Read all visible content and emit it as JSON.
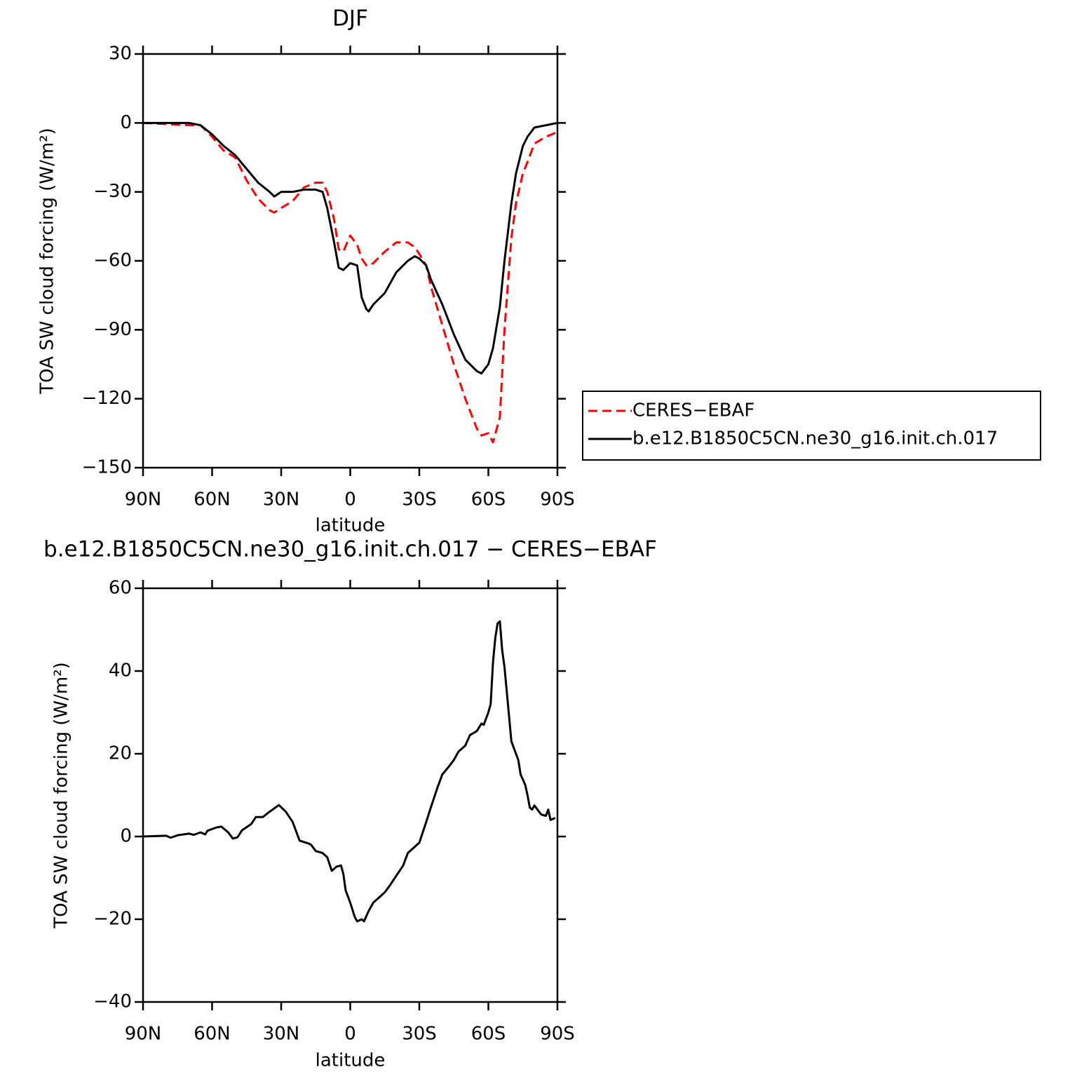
{
  "chart_data": [
    {
      "type": "line",
      "title": "DJF",
      "xlabel": "latitude",
      "ylabel": "TOA SW cloud forcing (W/m²)",
      "xlim": [
        90,
        -90
      ],
      "xticks": [
        {
          "value": 90,
          "label": "90N"
        },
        {
          "value": 60,
          "label": "60N"
        },
        {
          "value": 30,
          "label": "30N"
        },
        0,
        {
          "value": -30,
          "label": "30S"
        },
        {
          "value": -60,
          "label": "60S"
        },
        {
          "value": -90,
          "label": "90S"
        }
      ],
      "ylim": [
        -150,
        30
      ],
      "yticks": [
        30,
        0,
        {
          "value": -30,
          "label": "−30"
        },
        {
          "value": -60,
          "label": "−60"
        },
        {
          "value": -90,
          "label": "−90"
        },
        {
          "value": -120,
          "label": "−120"
        },
        {
          "value": -150,
          "label": "−150"
        }
      ],
      "legend": "right",
      "x": [
        90,
        70,
        65,
        60,
        55,
        50,
        45,
        40,
        35,
        33,
        30,
        25,
        20,
        15,
        12,
        10,
        7,
        5,
        3,
        0,
        -3,
        -5,
        -7,
        -8,
        -10,
        -15,
        -20,
        -25,
        -28,
        -30,
        -33,
        -35,
        -40,
        -45,
        -50,
        -55,
        -57,
        -60,
        -62,
        -65,
        -67,
        -70,
        -72,
        -75,
        -77,
        -80,
        -85,
        -90
      ],
      "series": [
        {
          "name": "CERES−EBAF",
          "color": "#ff0000",
          "dashed": true,
          "values": [
            0,
            -1,
            -1,
            -6,
            -12,
            -15,
            -25,
            -33,
            -38,
            -39,
            -37,
            -34,
            -28,
            -26,
            -26,
            -30,
            -42,
            -55,
            -56,
            -49,
            -53,
            -59,
            -62,
            -62,
            -61,
            -56,
            -52,
            -52,
            -54,
            -57,
            -62,
            -71,
            -88,
            -105,
            -120,
            -133,
            -136,
            -135,
            -139,
            -128,
            -90,
            -50,
            -35,
            -22,
            -17,
            -9,
            -6,
            -4
          ]
        },
        {
          "name": "b.e12.B1850C5CN.ne30_g16.init.ch.017",
          "color": "#000000",
          "dashed": false,
          "values": [
            0,
            0,
            -1,
            -5,
            -10,
            -14,
            -20,
            -26,
            -30,
            -32,
            -30,
            -30,
            -29,
            -29,
            -30,
            -37,
            -52,
            -63,
            -64,
            -61,
            -62,
            -76,
            -81,
            -82,
            -79,
            -74,
            -65,
            -60,
            -58,
            -59,
            -62,
            -68,
            -79,
            -92,
            -103,
            -108,
            -109,
            -105,
            -98,
            -80,
            -60,
            -35,
            -22,
            -10,
            -6,
            -2,
            -1,
            0
          ]
        }
      ]
    },
    {
      "type": "line",
      "title": "b.e12.B1850C5CN.ne30_g16.init.ch.017 − CERES−EBAF",
      "xlabel": "latitude",
      "ylabel": "TOA SW cloud forcing (W/m²)",
      "xlim": [
        90,
        -90
      ],
      "xticks": [
        {
          "value": 90,
          "label": "90N"
        },
        {
          "value": 60,
          "label": "60N"
        },
        {
          "value": 30,
          "label": "30N"
        },
        0,
        {
          "value": -30,
          "label": "30S"
        },
        {
          "value": -60,
          "label": "60S"
        },
        {
          "value": -90,
          "label": "90S"
        }
      ],
      "ylim": [
        -40,
        60
      ],
      "yticks": [
        60,
        40,
        20,
        0,
        {
          "value": -20,
          "label": "−20"
        },
        {
          "value": -40,
          "label": "−40"
        }
      ],
      "x": [
        90,
        80,
        78,
        75,
        70,
        68,
        65,
        63,
        62,
        58,
        56,
        53,
        51,
        49,
        47,
        43,
        41,
        38,
        35,
        31,
        28,
        25,
        22,
        18,
        17,
        15,
        12,
        10,
        8,
        6,
        4,
        3,
        2,
        0,
        -2,
        -3,
        -5,
        -6,
        -8,
        -10,
        -12,
        -15,
        -17,
        -20,
        -23,
        -25,
        -27,
        -30,
        -33,
        -35,
        -38,
        -40,
        -43,
        -45,
        -47,
        -50,
        -52,
        -55,
        -57,
        -58,
        -60,
        -61,
        -62,
        -63,
        -64,
        -65,
        -66,
        -67,
        -68,
        -70,
        -73,
        -74,
        -76,
        -77,
        -78,
        -79,
        -80,
        -82,
        -83,
        -85,
        -86,
        -87,
        -89
      ],
      "series": [
        {
          "color": "#000000",
          "dashed": false,
          "values": [
            0,
            0.2,
            -0.3,
            0.3,
            0.7,
            0.4,
            1,
            0.5,
            1.4,
            2.2,
            2.4,
            1,
            -0.5,
            -0.2,
            1.5,
            3,
            4.7,
            4.7,
            6,
            7.6,
            6,
            3.5,
            -1,
            -1.7,
            -2,
            -3.5,
            -4,
            -5,
            -8.3,
            -7.3,
            -7,
            -9,
            -13,
            -16,
            -19.5,
            -20.5,
            -20,
            -20.5,
            -18,
            -16,
            -15,
            -13.5,
            -12,
            -9.5,
            -7,
            -4,
            -3,
            -1.5,
            3.5,
            7,
            12,
            15,
            17,
            18.5,
            20.5,
            22,
            24.5,
            25.5,
            27.3,
            27,
            30,
            32,
            42,
            48,
            51.5,
            52,
            45,
            41,
            35,
            23,
            18.5,
            15,
            12.5,
            10,
            7,
            6.5,
            7.5,
            6,
            5.3,
            5,
            6.5,
            4,
            4.5
          ]
        }
      ]
    }
  ]
}
